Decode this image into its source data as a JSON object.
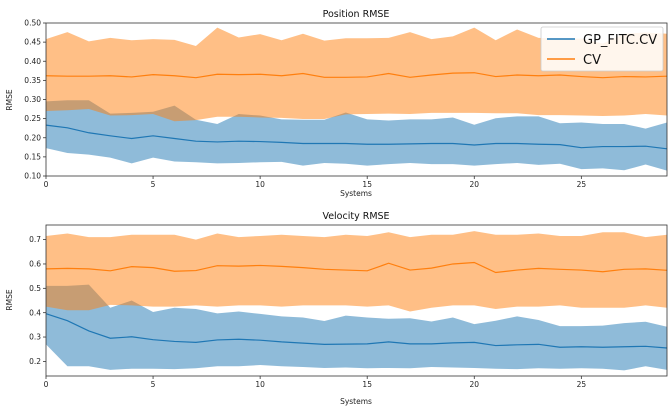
{
  "colors": {
    "gp": "#1f77b4",
    "cv": "#ff7f0e",
    "gp_band": "#1f77b4",
    "cv_band": "#ff7f0e"
  },
  "chart_data": [
    {
      "type": "line",
      "title": "Position RMSE",
      "xlabel": "Systems",
      "ylabel": "RMSE",
      "xlim": [
        0,
        29
      ],
      "ylim": [
        0.1,
        0.5
      ],
      "xticks": [
        0,
        5,
        10,
        15,
        20,
        25
      ],
      "yticks": [
        0.1,
        0.15,
        0.2,
        0.25,
        0.3,
        0.35,
        0.4,
        0.45,
        0.5
      ],
      "legend": "top-right",
      "x": [
        0,
        1,
        2,
        3,
        4,
        5,
        6,
        7,
        8,
        9,
        10,
        11,
        12,
        13,
        14,
        15,
        16,
        17,
        18,
        19,
        20,
        21,
        22,
        23,
        24,
        25,
        26,
        27,
        28,
        29
      ],
      "series": [
        {
          "name": "GP_FITC.CV",
          "color_key": "gp",
          "mean": [
            0.233,
            0.226,
            0.213,
            0.205,
            0.198,
            0.205,
            0.198,
            0.191,
            0.189,
            0.191,
            0.19,
            0.188,
            0.185,
            0.185,
            0.185,
            0.183,
            0.183,
            0.184,
            0.185,
            0.185,
            0.181,
            0.185,
            0.185,
            0.183,
            0.182,
            0.174,
            0.177,
            0.177,
            0.178,
            0.171
          ],
          "upper": [
            0.295,
            0.298,
            0.298,
            0.263,
            0.265,
            0.268,
            0.284,
            0.247,
            0.236,
            0.262,
            0.258,
            0.248,
            0.247,
            0.247,
            0.266,
            0.248,
            0.245,
            0.248,
            0.248,
            0.253,
            0.234,
            0.251,
            0.256,
            0.256,
            0.238,
            0.24,
            0.236,
            0.236,
            0.224,
            0.24
          ],
          "lower": [
            0.173,
            0.16,
            0.156,
            0.148,
            0.133,
            0.148,
            0.138,
            0.136,
            0.133,
            0.134,
            0.136,
            0.137,
            0.127,
            0.134,
            0.132,
            0.127,
            0.131,
            0.134,
            0.131,
            0.131,
            0.127,
            0.131,
            0.134,
            0.129,
            0.132,
            0.118,
            0.12,
            0.115,
            0.13,
            0.114
          ]
        },
        {
          "name": "CV",
          "color_key": "cv",
          "mean": [
            0.362,
            0.361,
            0.361,
            0.362,
            0.359,
            0.365,
            0.362,
            0.357,
            0.366,
            0.365,
            0.366,
            0.362,
            0.368,
            0.358,
            0.358,
            0.359,
            0.368,
            0.358,
            0.364,
            0.369,
            0.37,
            0.36,
            0.364,
            0.362,
            0.364,
            0.36,
            0.357,
            0.36,
            0.359,
            0.361
          ],
          "upper": [
            0.458,
            0.476,
            0.452,
            0.461,
            0.455,
            0.458,
            0.456,
            0.44,
            0.488,
            0.462,
            0.471,
            0.455,
            0.472,
            0.454,
            0.46,
            0.46,
            0.461,
            0.476,
            0.458,
            0.465,
            0.488,
            0.455,
            0.483,
            0.461,
            0.459,
            0.459,
            0.446,
            0.472,
            0.475,
            0.472
          ],
          "lower": [
            0.27,
            0.272,
            0.275,
            0.258,
            0.259,
            0.262,
            0.243,
            0.246,
            0.255,
            0.255,
            0.253,
            0.252,
            0.249,
            0.249,
            0.261,
            0.262,
            0.263,
            0.262,
            0.265,
            0.265,
            0.265,
            0.264,
            0.264,
            0.259,
            0.259,
            0.258,
            0.257,
            0.258,
            0.262,
            0.258
          ]
        }
      ]
    },
    {
      "type": "line",
      "title": "Velocity RMSE",
      "xlabel": "Systems",
      "ylabel": "RMSE",
      "xlim": [
        0,
        29
      ],
      "ylim": [
        0.14,
        0.76
      ],
      "xticks": [
        0,
        5,
        10,
        15,
        20,
        25
      ],
      "yticks": [
        0.2,
        0.3,
        0.4,
        0.5,
        0.6,
        0.7
      ],
      "x": [
        0,
        1,
        2,
        3,
        4,
        5,
        6,
        7,
        8,
        9,
        10,
        11,
        12,
        13,
        14,
        15,
        16,
        17,
        18,
        19,
        20,
        21,
        22,
        23,
        24,
        25,
        26,
        27,
        28,
        29
      ],
      "series": [
        {
          "name": "GP_FITC.CV",
          "color_key": "gp",
          "mean": [
            0.396,
            0.367,
            0.325,
            0.295,
            0.301,
            0.289,
            0.282,
            0.278,
            0.288,
            0.291,
            0.287,
            0.28,
            0.275,
            0.27,
            0.271,
            0.272,
            0.28,
            0.272,
            0.272,
            0.276,
            0.278,
            0.265,
            0.268,
            0.27,
            0.258,
            0.26,
            0.258,
            0.26,
            0.262,
            0.255
          ],
          "upper": [
            0.51,
            0.51,
            0.515,
            0.42,
            0.45,
            0.403,
            0.42,
            0.415,
            0.397,
            0.405,
            0.395,
            0.385,
            0.38,
            0.366,
            0.388,
            0.38,
            0.375,
            0.377,
            0.364,
            0.38,
            0.353,
            0.367,
            0.385,
            0.37,
            0.345,
            0.345,
            0.347,
            0.357,
            0.363,
            0.342
          ],
          "lower": [
            0.27,
            0.18,
            0.18,
            0.165,
            0.17,
            0.17,
            0.168,
            0.172,
            0.18,
            0.18,
            0.185,
            0.18,
            0.177,
            0.173,
            0.175,
            0.172,
            0.173,
            0.172,
            0.177,
            0.175,
            0.173,
            0.17,
            0.168,
            0.172,
            0.17,
            0.172,
            0.17,
            0.163,
            0.18,
            0.165
          ]
        },
        {
          "name": "CV",
          "color_key": "cv",
          "mean": [
            0.58,
            0.582,
            0.58,
            0.572,
            0.589,
            0.585,
            0.57,
            0.573,
            0.593,
            0.591,
            0.594,
            0.59,
            0.585,
            0.578,
            0.575,
            0.572,
            0.603,
            0.575,
            0.583,
            0.6,
            0.606,
            0.565,
            0.575,
            0.582,
            0.578,
            0.575,
            0.568,
            0.578,
            0.58,
            0.574
          ],
          "upper": [
            0.715,
            0.725,
            0.71,
            0.71,
            0.72,
            0.72,
            0.72,
            0.7,
            0.725,
            0.71,
            0.715,
            0.72,
            0.715,
            0.71,
            0.72,
            0.715,
            0.73,
            0.71,
            0.72,
            0.72,
            0.735,
            0.72,
            0.72,
            0.725,
            0.715,
            0.715,
            0.73,
            0.73,
            0.71,
            0.72
          ],
          "lower": [
            0.425,
            0.41,
            0.41,
            0.432,
            0.43,
            0.425,
            0.425,
            0.43,
            0.425,
            0.43,
            0.43,
            0.425,
            0.43,
            0.43,
            0.43,
            0.425,
            0.43,
            0.405,
            0.42,
            0.43,
            0.43,
            0.415,
            0.425,
            0.425,
            0.43,
            0.42,
            0.42,
            0.42,
            0.43,
            0.42
          ]
        }
      ]
    }
  ]
}
